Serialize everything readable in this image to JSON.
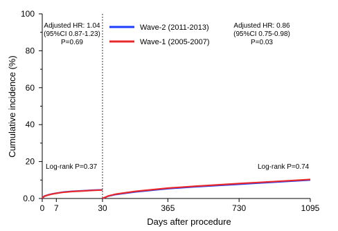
{
  "chart_data": {
    "type": "line",
    "ylabel": "Cumulative incidence (%)",
    "xlabel": "Days after procedure",
    "x_axis_scale": "piecewise: 0-30 days, then 30-1095 days",
    "xlim": [
      0,
      1095
    ],
    "x_break": 30,
    "ylim": [
      0,
      100
    ],
    "x_ticks": [
      {
        "value": 0,
        "label": "0"
      },
      {
        "value": 7,
        "label": "7"
      },
      {
        "value": 30,
        "label": "30"
      },
      {
        "value": 365,
        "label": "365"
      },
      {
        "value": 730,
        "label": "730"
      },
      {
        "value": 1095,
        "label": "1095"
      }
    ],
    "y_ticks": [
      {
        "value": 0,
        "label": "0.0"
      },
      {
        "value": 20,
        "label": "20"
      },
      {
        "value": 40,
        "label": "40"
      },
      {
        "value": 60,
        "label": "60"
      },
      {
        "value": 80,
        "label": "80"
      },
      {
        "value": 100,
        "label": "100"
      }
    ],
    "y_minor_ticks": [
      10,
      30,
      50,
      70,
      90
    ],
    "grid": false,
    "legend_position": "top-center",
    "series": [
      {
        "name": "Wave-2 (2011-2013)",
        "color": "#1a3cff",
        "segments": [
          {
            "x": [
              0,
              1,
              3,
              5,
              7,
              10,
              15,
              20,
              25,
              30
            ],
            "y": [
              0,
              1.3,
              2.0,
              2.5,
              2.9,
              3.4,
              3.9,
              4.2,
              4.5,
              4.7
            ]
          },
          {
            "x": [
              30,
              60,
              100,
              200,
              365,
              500,
              730,
              900,
              1095
            ],
            "y": [
              0,
              1.3,
              2.2,
              3.6,
              5.3,
              6.3,
              7.7,
              8.8,
              10.0
            ]
          }
        ]
      },
      {
        "name": "Wave-1 (2005-2007)",
        "color": "#e8282b",
        "segments": [
          {
            "x": [
              0,
              1,
              3,
              5,
              7,
              10,
              15,
              20,
              25,
              30
            ],
            "y": [
              0,
              1.2,
              1.9,
              2.4,
              2.8,
              3.3,
              3.8,
              4.1,
              4.4,
              4.6
            ]
          },
          {
            "x": [
              30,
              60,
              100,
              200,
              365,
              500,
              730,
              900,
              1095
            ],
            "y": [
              0,
              1.4,
              2.4,
              3.9,
              5.6,
              6.6,
              8.1,
              9.1,
              10.3
            ]
          }
        ]
      }
    ],
    "annotations": {
      "left": {
        "lines": [
          "Adjusted HR: 1.04",
          "(95%CI 0.87-1.23)",
          "P=0.69"
        ],
        "logrank": "Log-rank P=0.37"
      },
      "right": {
        "lines": [
          "Adjusted HR: 0.86",
          "(95%CI 0.75-0.98)",
          "P=0.03"
        ],
        "logrank": "Log-rank P=0.74"
      }
    }
  }
}
